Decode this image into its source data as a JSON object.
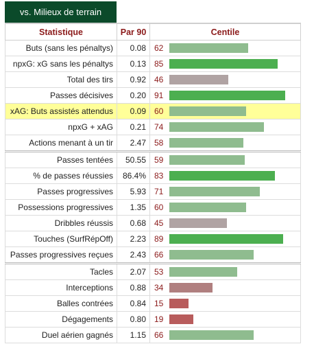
{
  "tab_label": "vs. Milieux de terrain",
  "headers": {
    "stat": "Statistique",
    "per90": "Par 90",
    "pct": "Centile"
  },
  "colors": {
    "high": "#4caf50",
    "mid": "#8fbc8f",
    "low": "#b0a0a0",
    "verylow": "#b86060",
    "highlight": "#ffff99",
    "header_text": "#8b1a1a"
  },
  "groups": [
    {
      "rows": [
        {
          "label": "Buts (sans les pénaltys)",
          "value": "0.08",
          "pct": "62",
          "pct_value": 62,
          "tier": "mid"
        },
        {
          "label": "npxG: xG sans les pénaltys",
          "value": "0.13",
          "pct": "85",
          "pct_value": 85,
          "tier": "high"
        },
        {
          "label": "Total des tirs",
          "value": "0.92",
          "pct": "46",
          "pct_value": 46,
          "tier": "low"
        },
        {
          "label": "Passes décisives",
          "value": "0.20",
          "pct": "91",
          "pct_value": 91,
          "tier": "high"
        },
        {
          "label": "xAG: Buts assistés attendus",
          "value": "0.09",
          "pct": "60",
          "pct_value": 60,
          "tier": "mid",
          "highlight": true
        },
        {
          "label": "npxG + xAG",
          "value": "0.21",
          "pct": "74",
          "pct_value": 74,
          "tier": "mid"
        },
        {
          "label": "Actions menant à un tir",
          "value": "2.47",
          "pct": "58",
          "pct_value": 58,
          "tier": "mid"
        }
      ]
    },
    {
      "rows": [
        {
          "label": "Passes tentées",
          "value": "50.55",
          "pct": "59",
          "pct_value": 59,
          "tier": "mid"
        },
        {
          "label": "% de passes réussies",
          "value": "86.4%",
          "pct": "83",
          "pct_value": 83,
          "tier": "high"
        },
        {
          "label": "Passes progressives",
          "value": "5.93",
          "pct": "71",
          "pct_value": 71,
          "tier": "mid"
        },
        {
          "label": "Possessions progressives",
          "value": "1.35",
          "pct": "60",
          "pct_value": 60,
          "tier": "mid"
        },
        {
          "label": "Dribbles réussis",
          "value": "0.68",
          "pct": "45",
          "pct_value": 45,
          "tier": "low"
        },
        {
          "label": "Touches (SurfRépOff)",
          "value": "2.23",
          "pct": "89",
          "pct_value": 89,
          "tier": "high"
        },
        {
          "label": "Passes progressives reçues",
          "value": "2.43",
          "pct": "66",
          "pct_value": 66,
          "tier": "mid"
        }
      ]
    },
    {
      "rows": [
        {
          "label": "Tacles",
          "value": "2.07",
          "pct": "53",
          "pct_value": 53,
          "tier": "mid"
        },
        {
          "label": "Interceptions",
          "value": "0.88",
          "pct": "34",
          "pct_value": 34,
          "tier": "lowred"
        },
        {
          "label": "Balles contrées",
          "value": "0.84",
          "pct": "15",
          "pct_value": 15,
          "tier": "verylow"
        },
        {
          "label": "Dégagements",
          "value": "0.80",
          "pct": "19",
          "pct_value": 19,
          "tier": "verylow"
        },
        {
          "label": "Duel aérien gagnés",
          "value": "1.15",
          "pct": "66",
          "pct_value": 66,
          "tier": "mid"
        }
      ]
    }
  ]
}
